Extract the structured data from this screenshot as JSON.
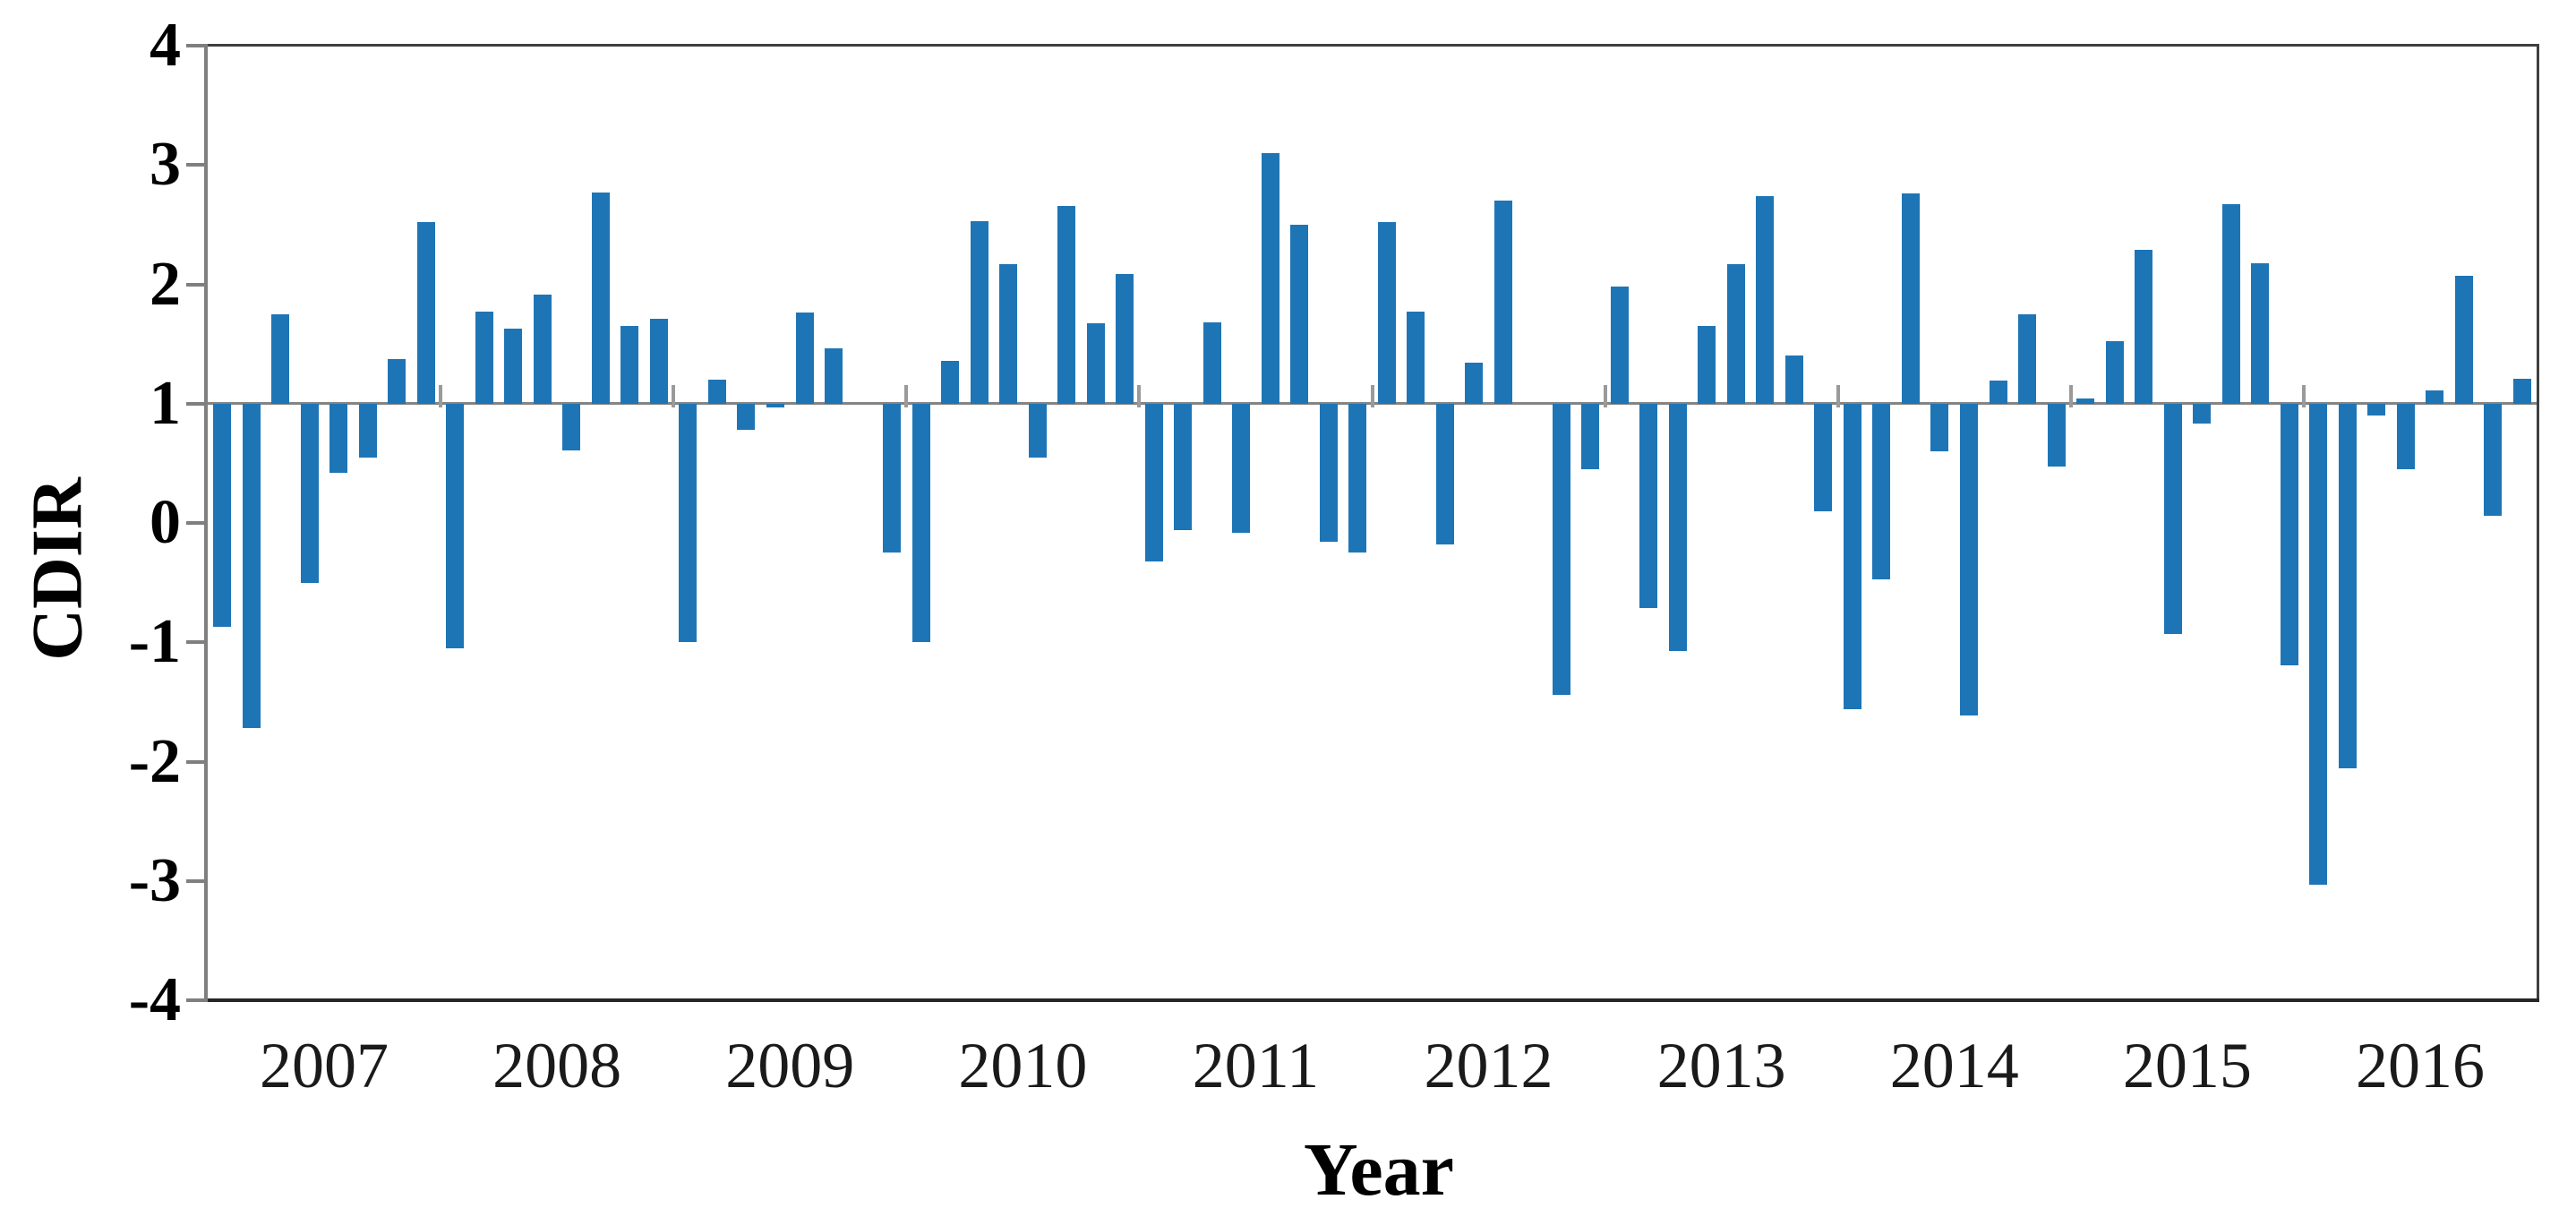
{
  "chart_data": {
    "type": "bar",
    "title": "",
    "xlabel": "Year",
    "ylabel": "CDIR",
    "ylim": [
      -4,
      4
    ],
    "ytick_step": 1,
    "ytick_labels": [
      "4",
      "3",
      "2",
      "1",
      "0",
      "-1",
      "-2",
      "-3",
      "-4"
    ],
    "bar_baseline": 1.0,
    "bars_per_year": 8,
    "grid": "off",
    "legend": "none",
    "categories": [
      "2007",
      "2008",
      "2009",
      "2010",
      "2011",
      "2012",
      "2013",
      "2014",
      "2015",
      "2016"
    ],
    "series": [
      {
        "name": "CDIR",
        "values_by_year": [
          {
            "year": "2007",
            "values": [
              -0.87,
              -1.72,
              1.75,
              -0.5,
              0.42,
              0.55,
              1.37,
              2.52
            ]
          },
          {
            "year": "2008",
            "values": [
              -1.05,
              1.77,
              1.63,
              1.91,
              0.61,
              2.77,
              1.65,
              1.71
            ]
          },
          {
            "year": "2009",
            "values": [
              -1.0,
              1.2,
              0.78,
              0.97,
              1.76,
              1.46,
              1.0,
              -0.25
            ]
          },
          {
            "year": "2010",
            "values": [
              -1.0,
              1.36,
              2.53,
              2.17,
              0.55,
              2.66,
              1.67,
              2.09
            ]
          },
          {
            "year": "2011",
            "values": [
              -0.32,
              -0.06,
              1.68,
              -0.08,
              3.1,
              2.5,
              -0.16,
              -0.25
            ]
          },
          {
            "year": "2012",
            "values": [
              2.52,
              1.77,
              -0.18,
              1.34,
              2.7,
              1.0,
              -1.44,
              0.45
            ]
          },
          {
            "year": "2013",
            "values": [
              1.98,
              -0.71,
              -1.07,
              1.65,
              2.17,
              2.74,
              1.4,
              0.1
            ]
          },
          {
            "year": "2014",
            "values": [
              -1.56,
              -0.47,
              2.76,
              0.6,
              -1.61,
              1.19,
              1.75,
              0.47
            ]
          },
          {
            "year": "2015",
            "values": [
              1.04,
              1.52,
              2.29,
              -0.93,
              0.83,
              2.67,
              2.18,
              -1.19
            ]
          },
          {
            "year": "2016",
            "values": [
              -3.03,
              -2.06,
              0.9,
              0.45,
              1.11,
              2.07,
              0.06,
              1.21
            ]
          }
        ]
      }
    ],
    "style": {
      "bar_color": "#1e75b6",
      "axis_color": "#7f7f7f",
      "frame_color": "#3f3f3f",
      "year_tick_color": "#9a9a9a",
      "text_color": "#000000",
      "background_color": "#ffffff"
    }
  }
}
